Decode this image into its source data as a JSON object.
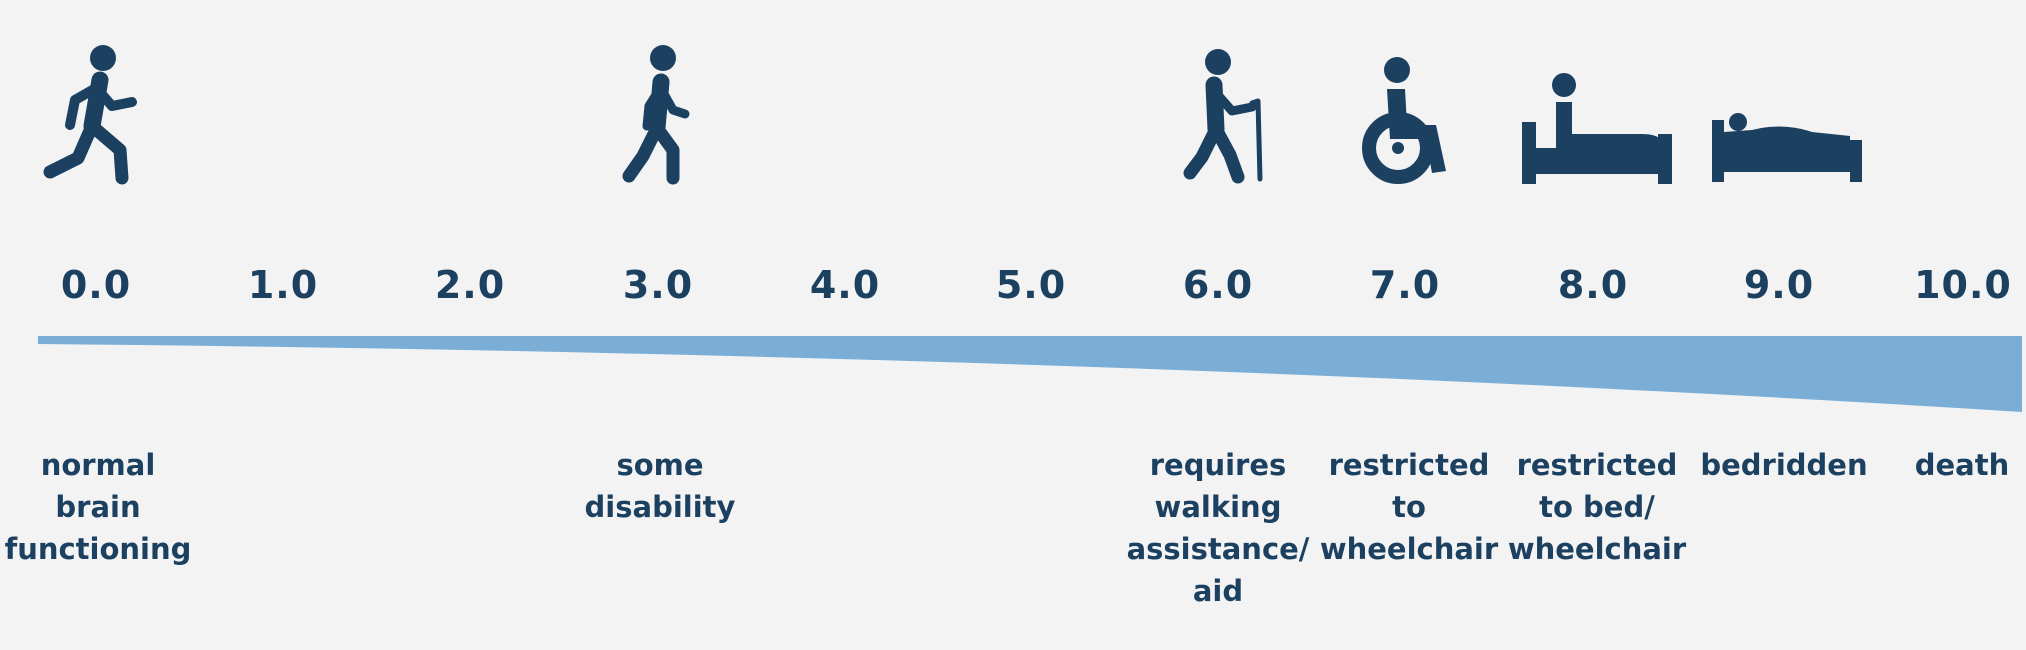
{
  "accent_color": "#1b4060",
  "wedge_color": "#7aaed6",
  "background_color": "#f3f3f4",
  "scale": {
    "ticks": [
      "0.0",
      "1.0",
      "2.0",
      "3.0",
      "4.0",
      "5.0",
      "6.0",
      "7.0",
      "8.0",
      "9.0",
      "10.0"
    ]
  },
  "stages": [
    {
      "score": "0.0",
      "icon": "running-person-icon",
      "label": "normal\nbrain\nfunctioning"
    },
    {
      "score": "3.0",
      "icon": "walking-person-icon",
      "label": "some\ndisability"
    },
    {
      "score": "6.0",
      "icon": "person-with-cane-icon",
      "label": "requires\nwalking\nassistance/\naid"
    },
    {
      "score": "7.0",
      "icon": "wheelchair-user-icon",
      "label": "restricted\nto\nwheelchair"
    },
    {
      "score": "8.0",
      "icon": "person-sitting-in-bed-icon",
      "label": "restricted\nto bed/\nwheelchair"
    },
    {
      "score": "9.0",
      "icon": "person-lying-in-bed-icon",
      "label": "bedridden"
    },
    {
      "score": "10.0",
      "icon": "",
      "label": "death"
    }
  ]
}
